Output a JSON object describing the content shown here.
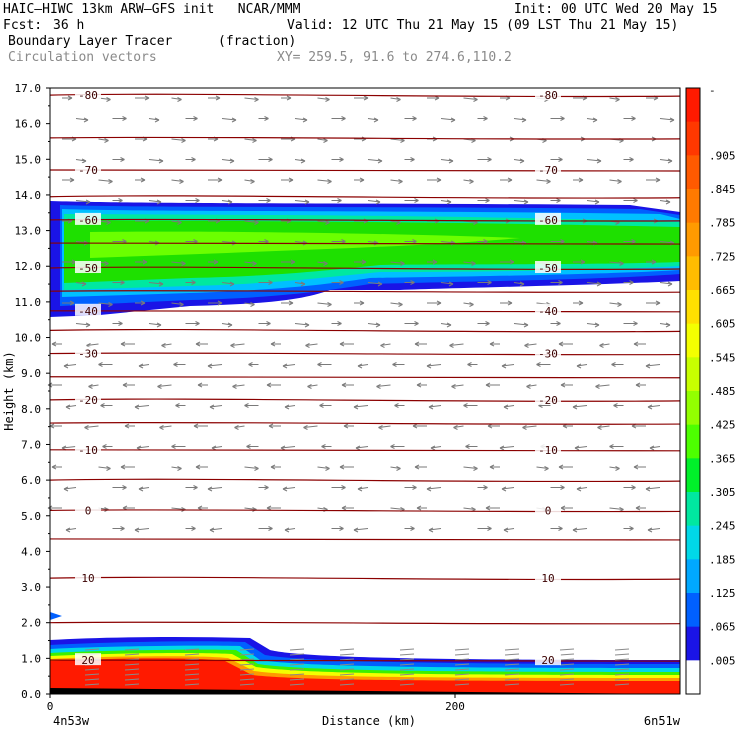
{
  "header": {
    "model": "HAIC–HIWC 13km ARW–GFS init   NCAR/MMM",
    "init": "Init: 00 UTC Wed 20 May 15",
    "fcst_label": "Fcst:",
    "fcst_value": "36 h",
    "valid": "Valid: 12 UTC Thu 21 May 15 (09 LST Thu 21 May 15)",
    "field_name": "Boundary Layer Tracer",
    "field_units": "(fraction)",
    "vectors_label": "Circulation vectors",
    "xy_label": "XY= 259.5, 91.6 to 274.6,110.2"
  },
  "chart_data": {
    "type": "heatmap",
    "xlabel": "Distance (km)",
    "ylabel": "Height (km)",
    "x_ticks": [
      "0",
      "200"
    ],
    "x_ends": {
      "left": "4n53w",
      "right": "6n51w"
    },
    "xlim": [
      0,
      320
    ],
    "ylim": [
      0,
      17
    ],
    "y_ticks": [
      "0.0",
      "1.0",
      "2.0",
      "3.0",
      "4.0",
      "5.0",
      "6.0",
      "7.0",
      "8.0",
      "9.0",
      "10.0",
      "11.0",
      "12.0",
      "13.0",
      "14.0",
      "15.0",
      "16.0",
      "17.0"
    ],
    "colorbar": {
      "labels": [
        "-",
        ".905",
        ".845",
        ".785",
        ".725",
        ".665",
        ".605",
        ".545",
        ".485",
        ".425",
        ".365",
        ".305",
        ".245",
        ".185",
        ".125",
        ".065",
        ".005"
      ],
      "colors": [
        "#ff1a00",
        "#ff3800",
        "#ff5a00",
        "#ff7a00",
        "#ff9a00",
        "#ffbc00",
        "#ffdf00",
        "#f4ff00",
        "#c8ff00",
        "#93ff00",
        "#4dff00",
        "#00f02a",
        "#00e8a0",
        "#00d8e8",
        "#00a8ff",
        "#0060ff",
        "#1a14e6",
        "#ffffff"
      ]
    },
    "isotherms": [
      {
        "label": "-80",
        "h": 16.8
      },
      {
        "label": "",
        "h": 15.6
      },
      {
        "label": "-70",
        "h": 14.7
      },
      {
        "label": "",
        "h": 13.95
      },
      {
        "label": "-60",
        "h": 13.3
      },
      {
        "label": "",
        "h": 12.65
      },
      {
        "label": "-50",
        "h": 11.95
      },
      {
        "label": "",
        "h": 11.3
      },
      {
        "label": "-40",
        "h": 10.75
      },
      {
        "label": "",
        "h": 10.2
      },
      {
        "label": "-30",
        "h": 9.55
      },
      {
        "label": "",
        "h": 8.9
      },
      {
        "label": "-20",
        "h": 8.25
      },
      {
        "label": "",
        "h": 7.6
      },
      {
        "label": "-10",
        "h": 6.85
      },
      {
        "label": "",
        "h": 6.0
      },
      {
        "label": "0",
        "h": 5.15
      },
      {
        "label": "",
        "h": 4.35
      },
      {
        "label": "10",
        "h": 3.25
      },
      {
        "label": "",
        "h": 2.0
      },
      {
        "label": "20",
        "h": 0.95
      }
    ]
  }
}
